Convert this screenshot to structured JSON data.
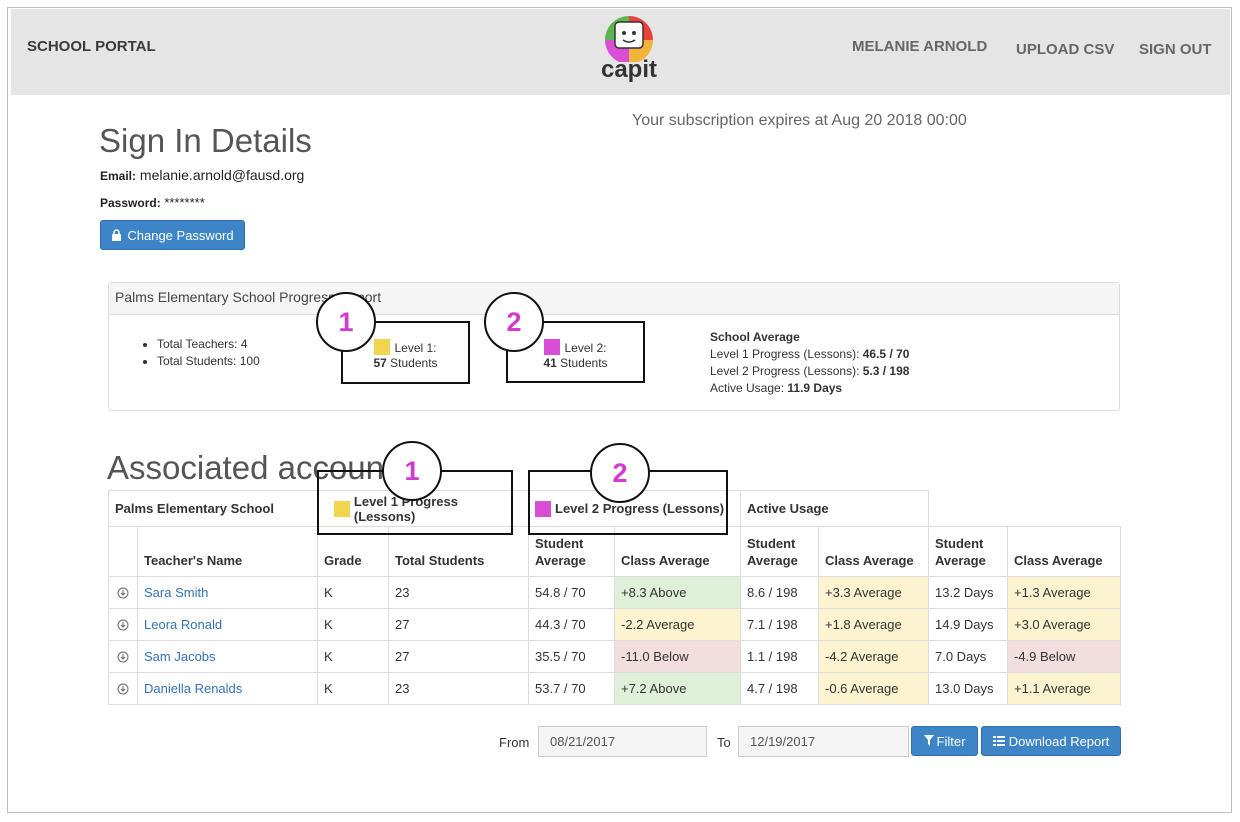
{
  "header": {
    "brand": "SCHOOL PORTAL",
    "logo_text": "capit",
    "user_name": "MELANIE ARNOLD",
    "upload_label": "UPLOAD CSV",
    "signout_label": "SIGN OUT"
  },
  "subscription": "Your subscription expires at Aug 20 2018 00:00",
  "signin": {
    "title": "Sign In Details",
    "email_label": "Email:",
    "email_value": "melanie.arnold@fausd.org",
    "password_label": "Password:",
    "password_value": "********",
    "change_password_label": "Change Password"
  },
  "report": {
    "title": "Palms Elementary School Progress Report",
    "total_teachers": "Total Teachers: 4",
    "total_students": "Total Students: 100",
    "level1_title": "Level 1:",
    "level1_count": "57",
    "level1_students": "Students",
    "level2_title": "Level 2:",
    "level2_count": "41",
    "level2_students": "Students",
    "avg_title": "School Average",
    "l1_progress_label": "Level 1 Progress (Lessons):",
    "l1_progress_value": "46.5 / 70",
    "l2_progress_label": "Level 2 Progress (Lessons):",
    "l2_progress_value": "5.3 / 198",
    "usage_label": "Active Usage:",
    "usage_value": "11.9 Days"
  },
  "callouts": [
    "1",
    "2",
    "1",
    "2"
  ],
  "colors": {
    "level1": "#f2d54e",
    "level2": "#d84ed6",
    "accent": "#3d85c6"
  },
  "accounts": {
    "title": "Associated accounts",
    "school": "Palms Elementary School",
    "group_l1": "Level 1 Progress (Lessons)",
    "group_l2": "Level 2 Progress (Lessons)",
    "group_usage": "Active Usage",
    "columns": [
      "Teacher's Name",
      "Grade",
      "Total Students",
      "Student Average",
      "Class Average",
      "Student Average",
      "Class Average",
      "Student Average",
      "Class Average"
    ],
    "rows": [
      {
        "name": "Sara Smith",
        "grade": "K",
        "total": "23",
        "l1_avg": "54.8 / 70",
        "l1_class": "+8.3 Above",
        "l2_avg": "8.6 / 198",
        "l2_class": "+3.3 Average",
        "u_avg": "13.2 Days",
        "u_class": "+1.3 Average"
      },
      {
        "name": "Leora Ronald",
        "grade": "K",
        "total": "27",
        "l1_avg": "44.3 / 70",
        "l1_class": "-2.2 Average",
        "l2_avg": "7.1 / 198",
        "l2_class": "+1.8 Average",
        "u_avg": "14.9 Days",
        "u_class": "+3.0 Average"
      },
      {
        "name": "Sam Jacobs",
        "grade": "K",
        "total": "27",
        "l1_avg": "35.5 / 70",
        "l1_class": "-11.0 Below",
        "l2_avg": "1.1 / 198",
        "l2_class": "-4.2 Average",
        "u_avg": "7.0 Days",
        "u_class": "-4.9 Below"
      },
      {
        "name": "Daniella Renalds",
        "grade": "K",
        "total": "23",
        "l1_avg": "53.7 / 70",
        "l1_class": "+7.2 Above",
        "l2_avg": "4.7 / 198",
        "l2_class": "-0.6 Average",
        "u_avg": "13.0 Days",
        "u_class": "+1.1 Average"
      }
    ]
  },
  "filter": {
    "from_label": "From",
    "from_value": "08/21/2017",
    "to_label": "To",
    "to_value": "12/19/2017",
    "filter_label": "Filter",
    "download_label": "Download Report"
  }
}
